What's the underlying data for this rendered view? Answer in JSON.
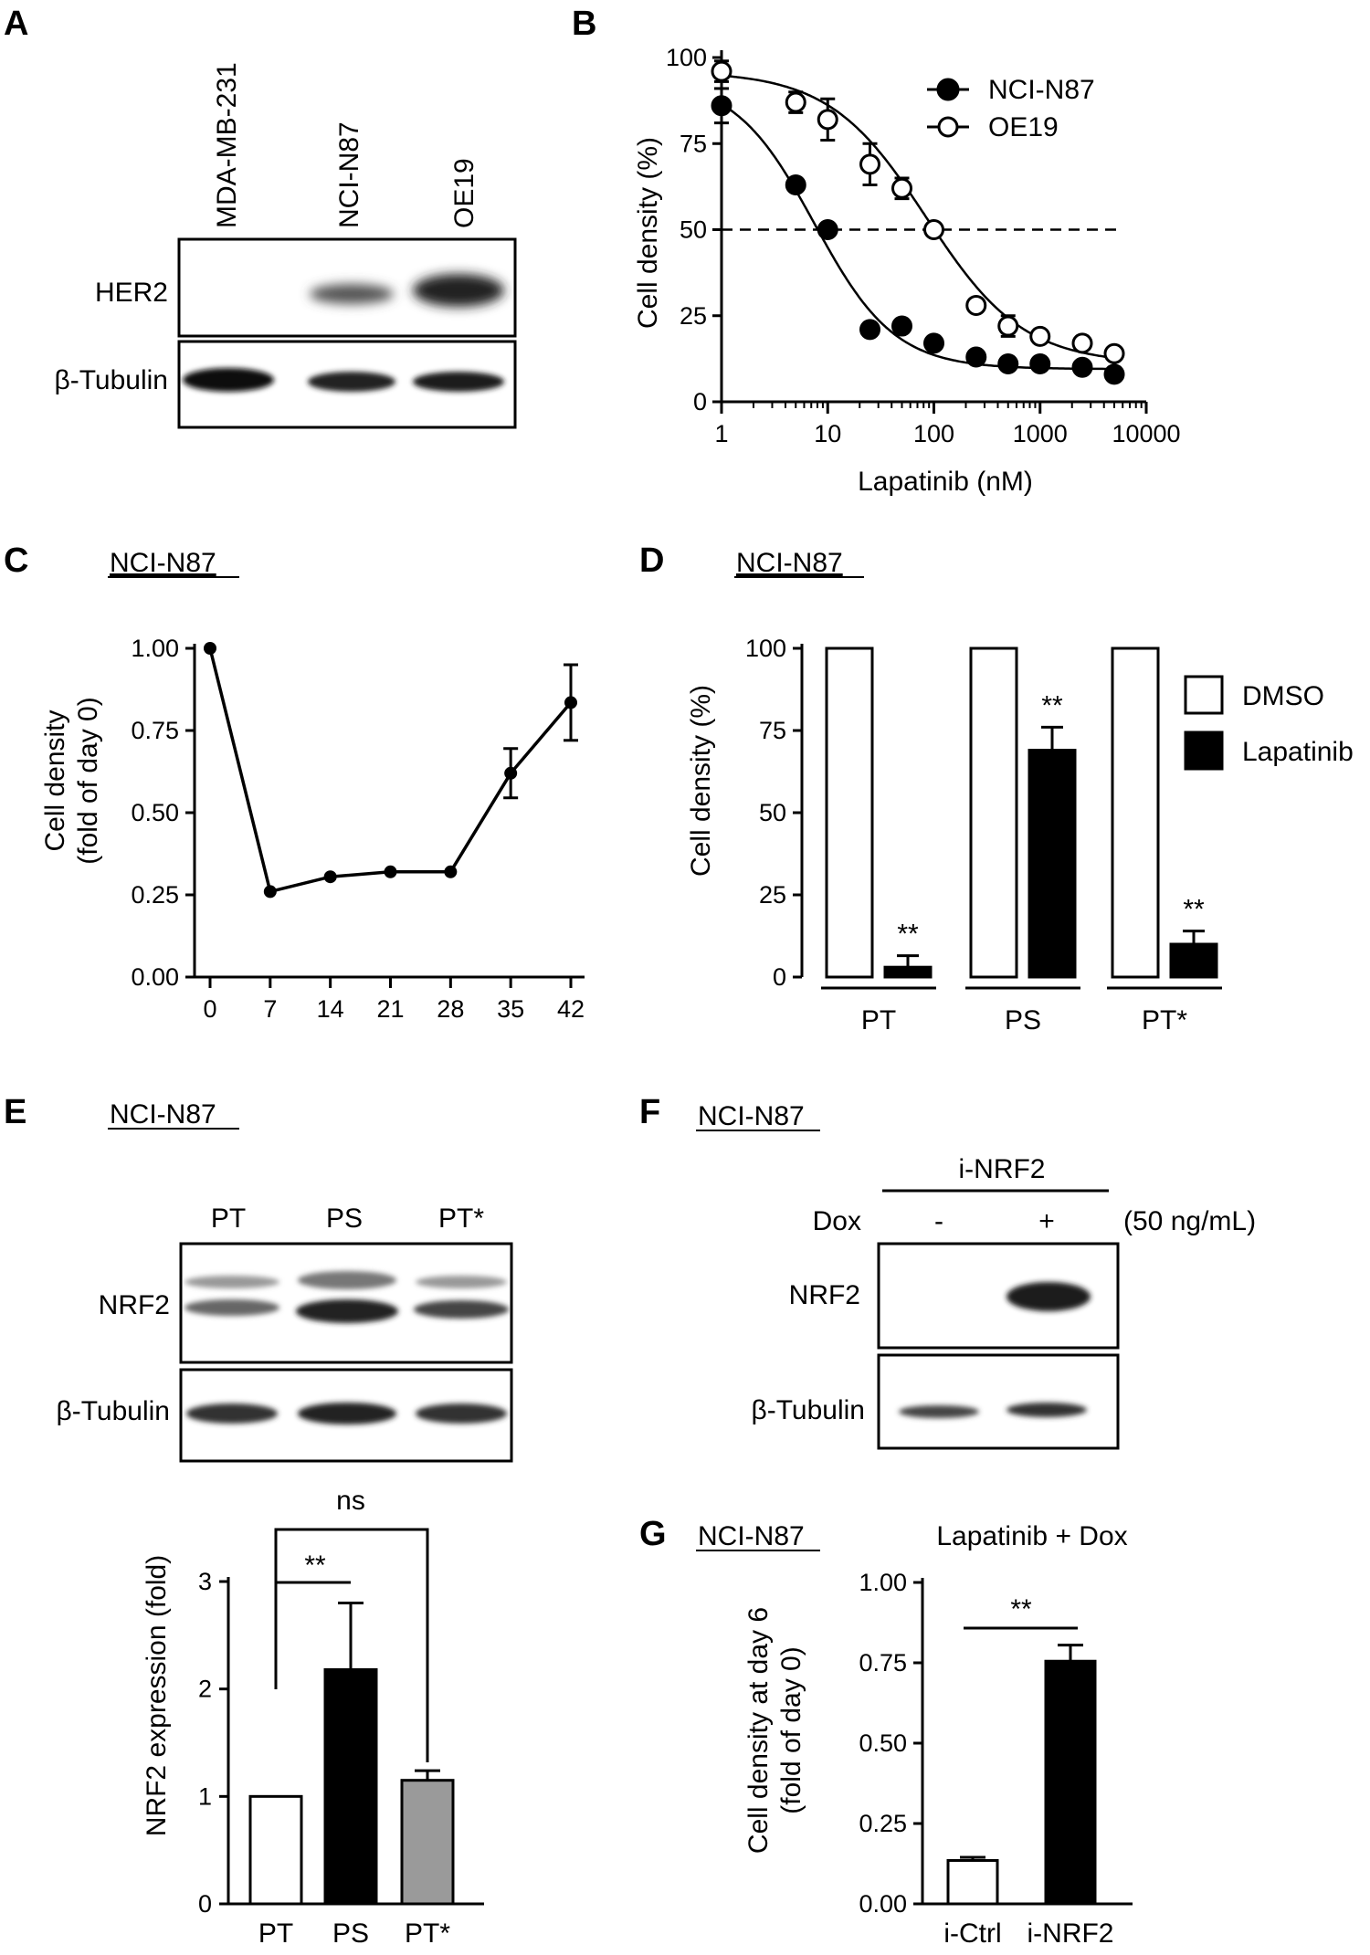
{
  "panels": {
    "A": {
      "letter": "A",
      "lanes": [
        "MDA-MB-231",
        "NCI-N87",
        "OE19"
      ],
      "rows": [
        "HER2",
        "β-Tubulin"
      ]
    },
    "B": {
      "letter": "B",
      "chart_data": {
        "type": "scatter",
        "xscale": "log",
        "xlabel": "Lapatinib (nM)",
        "ylabel": "Cell density (%)",
        "xlim": [
          1,
          10000
        ],
        "ylim": [
          0,
          100
        ],
        "xticks": [
          "1",
          "10",
          "100",
          "1000",
          "10000"
        ],
        "yticks": [
          "0",
          "25",
          "50",
          "75",
          "100"
        ],
        "reference_line_y": 50,
        "legend_position": "top-right",
        "series": [
          {
            "name": "NCI-N87",
            "marker": "filled",
            "x": [
              1,
              5,
              10,
              25,
              50,
              100,
              250,
              500,
              1000,
              2500,
              5000
            ],
            "y": [
              86,
              63,
              50,
              21,
              22,
              17,
              13,
              11,
              11,
              10,
              8
            ],
            "err": [
              5,
              0,
              0,
              0,
              0,
              0,
              0,
              0,
              0,
              0,
              0
            ]
          },
          {
            "name": "OE19",
            "marker": "open",
            "x": [
              1,
              5,
              10,
              25,
              50,
              100,
              250,
              500,
              1000,
              2500,
              5000
            ],
            "y": [
              96,
              87,
              82,
              69,
              62,
              50,
              28,
              22,
              19,
              17,
              14
            ],
            "err": [
              3,
              3,
              6,
              6,
              3,
              0,
              0,
              3,
              0,
              0,
              0
            ]
          }
        ]
      }
    },
    "C": {
      "letter": "C",
      "title": "NCI-N87",
      "chart_data": {
        "type": "line",
        "ylabel_lines": [
          "Cell density",
          "(fold of day 0)"
        ],
        "xlim": [
          0,
          42
        ],
        "ylim": [
          0,
          1
        ],
        "xticks": [
          "0",
          "7",
          "14",
          "21",
          "28",
          "35",
          "42"
        ],
        "yticks": [
          "0.00",
          "0.25",
          "0.50",
          "0.75",
          "1.00"
        ],
        "series": [
          {
            "x": [
              0,
              7,
              14,
              21,
              28,
              35,
              42
            ],
            "y": [
              1.0,
              0.26,
              0.305,
              0.32,
              0.32,
              0.62,
              0.835
            ],
            "err": [
              0,
              0,
              0,
              0,
              0,
              0.075,
              0.115
            ]
          }
        ]
      }
    },
    "D": {
      "letter": "D",
      "title": "NCI-N87",
      "chart_data": {
        "type": "bar",
        "ylabel": "Cell density (%)",
        "ylim": [
          0,
          100
        ],
        "yticks": [
          "0",
          "25",
          "50",
          "75",
          "100"
        ],
        "categories": [
          "PT",
          "PS",
          "PT*"
        ],
        "legend_position": "top-right",
        "series": [
          {
            "name": "DMSO",
            "fill": "#ffffff",
            "values": [
              100,
              100,
              100
            ],
            "err": [
              0,
              0,
              0
            ],
            "sig": [
              "",
              "",
              ""
            ]
          },
          {
            "name": "Lapatinib",
            "fill": "#000000",
            "values": [
              3,
              69,
              10
            ],
            "err": [
              3.5,
              7,
              4
            ],
            "sig": [
              "**",
              "**",
              "**"
            ]
          }
        ]
      }
    },
    "E": {
      "letter": "E",
      "title": "NCI-N87",
      "lanes": [
        "PT",
        "PS",
        "PT*"
      ],
      "rows": [
        "NRF2",
        "β-Tubulin"
      ],
      "chart_data": {
        "type": "bar",
        "ylabel": "NRF2 expression (fold)",
        "ylim": [
          0,
          3
        ],
        "yticks": [
          "0",
          "1",
          "2",
          "3"
        ],
        "categories": [
          "PT",
          "PS",
          "PT*"
        ],
        "values": [
          1.0,
          2.18,
          1.15
        ],
        "err": [
          0,
          0.62,
          0.09
        ],
        "colors": [
          "#ffffff",
          "#000000",
          "#9a9a9a"
        ],
        "comparisons": [
          {
            "label": "**",
            "from": "PT",
            "to": "PS"
          },
          {
            "label": "ns",
            "from": "PT",
            "to": "PT*"
          }
        ]
      }
    },
    "F": {
      "letter": "F",
      "title": "NCI-N87",
      "group_label": "i-NRF2",
      "dox_label": "Dox",
      "dox_states": [
        "-",
        "+"
      ],
      "dox_conc": "(50 ng/mL)",
      "rows": [
        "NRF2",
        "β-Tubulin"
      ]
    },
    "G": {
      "letter": "G",
      "title": "NCI-N87",
      "subtitle": "Lapatinib + Dox",
      "chart_data": {
        "type": "bar",
        "ylabel_lines": [
          "Cell density at day 6",
          "(fold of day 0)"
        ],
        "ylim": [
          0,
          1
        ],
        "yticks": [
          "0.00",
          "0.25",
          "0.50",
          "0.75",
          "1.00"
        ],
        "categories": [
          "i-Ctrl",
          "i-NRF2"
        ],
        "values": [
          0.135,
          0.755
        ],
        "err": [
          0.01,
          0.05
        ],
        "colors": [
          "#ffffff",
          "#000000"
        ],
        "sig": "**"
      }
    }
  }
}
